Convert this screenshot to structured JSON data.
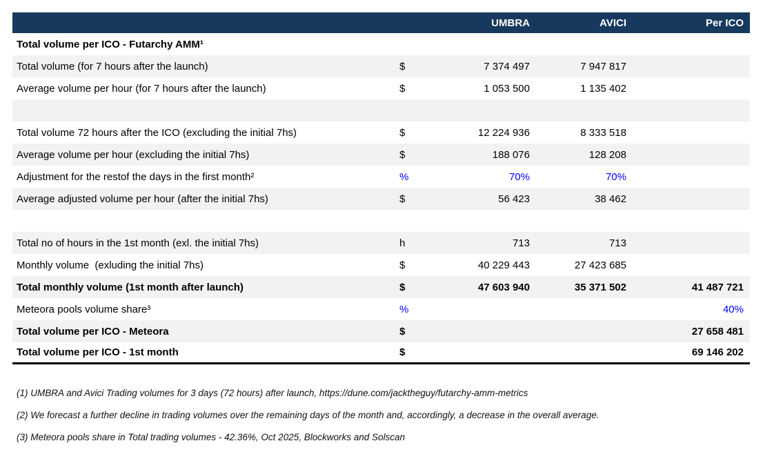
{
  "colors": {
    "header_bg": "#17395D",
    "stripe_bg": "#F2F2F2",
    "accent_blue": "#0000FF"
  },
  "header": {
    "umbra": "UMBRA",
    "avici": "AVICI",
    "per_ico": "Per ICO"
  },
  "table": {
    "rows": [
      {
        "label": "Total volume per ICO - Futarchy AMM¹",
        "unit": "",
        "umbra": "",
        "avici": "",
        "per_ico": ""
      },
      {
        "label": "Total volume (for 7 hours after the launch)",
        "unit": "$",
        "umbra": "7 374 497",
        "avici": "7 947 817",
        "per_ico": ""
      },
      {
        "label": "Average volume per hour (for 7 hours after the launch)",
        "unit": "$",
        "umbra": "1 053 500",
        "avici": "1 135 402",
        "per_ico": ""
      },
      {
        "label": "",
        "unit": "",
        "umbra": "",
        "avici": "",
        "per_ico": ""
      },
      {
        "label": "Total volume 72 hours after the ICO (excluding the initial 7hs)",
        "unit": "$",
        "umbra": "12 224 936",
        "avici": "8 333 518",
        "per_ico": ""
      },
      {
        "label": "Average volume per hour (excluding the initial 7hs)",
        "unit": "$",
        "umbra": "188 076",
        "avici": "128 208",
        "per_ico": ""
      },
      {
        "label": "Adjustment for the restof the days in the first month²",
        "unit": "%",
        "umbra": "70%",
        "avici": "70%",
        "per_ico": ""
      },
      {
        "label": "Average adjusted volume per hour (after the initial 7hs)",
        "unit": "$",
        "umbra": "56 423",
        "avici": "38 462",
        "per_ico": ""
      },
      {
        "label": "",
        "unit": "",
        "umbra": "",
        "avici": "",
        "per_ico": ""
      },
      {
        "label": "Total no of hours in the 1st month (exl. the initial 7hs)",
        "unit": "h",
        "umbra": "713",
        "avici": "713",
        "per_ico": ""
      },
      {
        "label": "Monthly volume  (exluding the initial 7hs)",
        "unit": "$",
        "umbra": "40 229 443",
        "avici": "27 423 685",
        "per_ico": ""
      },
      {
        "label": "Total monthly volume (1st month after launch)",
        "unit": "$",
        "umbra": "47 603 940",
        "avici": "35 371 502",
        "per_ico": "41 487 721"
      },
      {
        "label": "Meteora pools volume share³",
        "unit": "%",
        "umbra": "",
        "avici": "",
        "per_ico": "40%"
      },
      {
        "label": "Total volume per ICO - Meteora",
        "unit": "$",
        "umbra": "",
        "avici": "",
        "per_ico": "27 658 481"
      },
      {
        "label": "Total volume per ICO - 1st month",
        "unit": "$",
        "umbra": "",
        "avici": "",
        "per_ico": "69 146 202"
      }
    ]
  },
  "footnotes": [
    "(1) UMBRA and Avici Trading volumes for 3 days (72 hours) after launch, https://dune.com/jacktheguy/futarchy-amm-metrics",
    "(2) We forecast a further decline in trading volumes over the remaining days of the month and, accordingly, a decrease in the overall average.",
    "(3) Meteora pools share in Total trading volumes - 42.36%, Oct 2025, Blockworks and Solscan"
  ]
}
